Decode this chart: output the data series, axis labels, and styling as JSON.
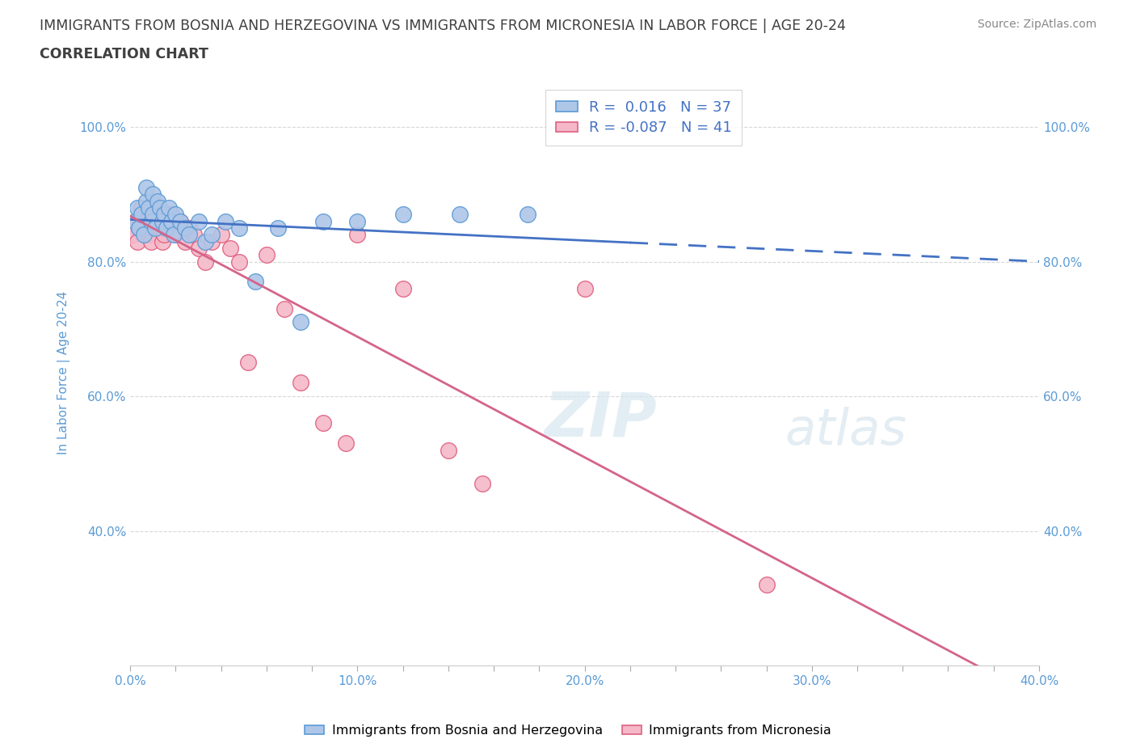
{
  "title_line1": "IMMIGRANTS FROM BOSNIA AND HERZEGOVINA VS IMMIGRANTS FROM MICRONESIA IN LABOR FORCE | AGE 20-24",
  "title_line2": "CORRELATION CHART",
  "source": "Source: ZipAtlas.com",
  "ylabel": "In Labor Force | Age 20-24",
  "xlim": [
    0.0,
    0.4
  ],
  "ylim": [
    0.2,
    1.07
  ],
  "xtick_labels": [
    "0.0%",
    "",
    "",
    "",
    "",
    "10.0%",
    "",
    "",
    "",
    "",
    "20.0%",
    "",
    "",
    "",
    "",
    "30.0%",
    "",
    "",
    "",
    "",
    "40.0%"
  ],
  "xtick_vals": [
    0.0,
    0.02,
    0.04,
    0.06,
    0.08,
    0.1,
    0.12,
    0.14,
    0.16,
    0.18,
    0.2,
    0.22,
    0.24,
    0.26,
    0.28,
    0.3,
    0.32,
    0.34,
    0.36,
    0.38,
    0.4
  ],
  "ytick_labels": [
    "40.0%",
    "60.0%",
    "80.0%",
    "100.0%"
  ],
  "ytick_vals": [
    0.4,
    0.6,
    0.8,
    1.0
  ],
  "bosnia_color": "#aec6e8",
  "bosnia_edge_color": "#5b9bd5",
  "micronesia_color": "#f4b8c8",
  "micronesia_edge_color": "#e06080",
  "bosnia_R": 0.016,
  "bosnia_N": 37,
  "micronesia_R": -0.087,
  "micronesia_N": 41,
  "bosnia_line_color": "#4472c4",
  "micronesia_line_color": "#d4648a",
  "bosnia_x": [
    0.002,
    0.003,
    0.004,
    0.005,
    0.006,
    0.007,
    0.007,
    0.008,
    0.009,
    0.01,
    0.01,
    0.011,
    0.012,
    0.013,
    0.014,
    0.015,
    0.016,
    0.017,
    0.018,
    0.019,
    0.02,
    0.022,
    0.024,
    0.026,
    0.03,
    0.033,
    0.036,
    0.042,
    0.048,
    0.055,
    0.065,
    0.075,
    0.085,
    0.1,
    0.12,
    0.145,
    0.175
  ],
  "bosnia_y": [
    0.86,
    0.88,
    0.85,
    0.87,
    0.84,
    0.89,
    0.91,
    0.88,
    0.86,
    0.9,
    0.87,
    0.85,
    0.89,
    0.88,
    0.86,
    0.87,
    0.85,
    0.88,
    0.86,
    0.84,
    0.87,
    0.86,
    0.85,
    0.84,
    0.86,
    0.83,
    0.84,
    0.86,
    0.85,
    0.77,
    0.85,
    0.71,
    0.86,
    0.86,
    0.87,
    0.87,
    0.87
  ],
  "micronesia_x": [
    0.001,
    0.002,
    0.003,
    0.004,
    0.005,
    0.006,
    0.007,
    0.008,
    0.009,
    0.01,
    0.011,
    0.012,
    0.013,
    0.014,
    0.015,
    0.016,
    0.017,
    0.018,
    0.02,
    0.022,
    0.024,
    0.026,
    0.028,
    0.03,
    0.033,
    0.036,
    0.04,
    0.044,
    0.048,
    0.052,
    0.06,
    0.068,
    0.075,
    0.085,
    0.095,
    0.1,
    0.12,
    0.14,
    0.155,
    0.2,
    0.28
  ],
  "micronesia_y": [
    0.84,
    0.86,
    0.83,
    0.85,
    0.88,
    0.87,
    0.86,
    0.84,
    0.83,
    0.88,
    0.86,
    0.87,
    0.85,
    0.83,
    0.84,
    0.86,
    0.85,
    0.87,
    0.84,
    0.86,
    0.83,
    0.85,
    0.84,
    0.82,
    0.8,
    0.83,
    0.84,
    0.82,
    0.8,
    0.65,
    0.81,
    0.73,
    0.62,
    0.56,
    0.53,
    0.84,
    0.76,
    0.52,
    0.47,
    0.76,
    0.32
  ],
  "watermark_zip": "ZIP",
  "watermark_atlas": "atlas",
  "title_color": "#404040",
  "axis_label_color": "#5b9bd5",
  "tick_color": "#5b9bd5",
  "grid_color": "#d8d8d8"
}
